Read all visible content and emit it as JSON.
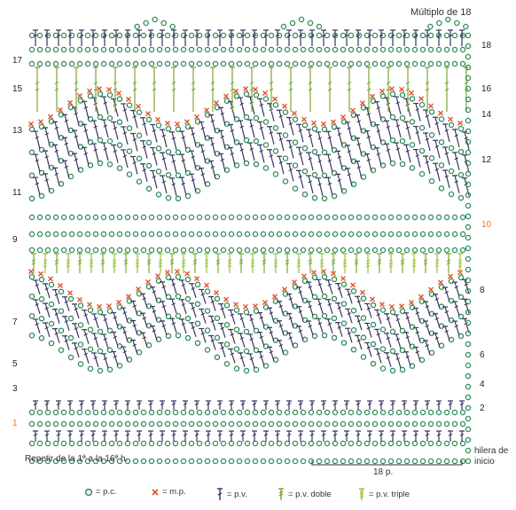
{
  "title": "Múltiplo de 18",
  "left_rows": [
    "17",
    "15",
    "13",
    "11",
    "9",
    "7",
    "5",
    "3",
    "1"
  ],
  "right_rows": [
    "18",
    "16",
    "14",
    "12",
    "10",
    "8",
    "6",
    "4",
    "2"
  ],
  "foundation_label": "hilera de inicio",
  "repeat_label": "18 p.",
  "note": "Repetir de la 1ª a la 16ª h.",
  "legend": [
    {
      "symbol": "circle-icon",
      "label": "= p.c."
    },
    {
      "symbol": "cross-icon",
      "label": "= m.p."
    },
    {
      "symbol": "stitch-dc-icon",
      "label": "= p.v."
    },
    {
      "symbol": "stitch-tr-icon",
      "label": "= p.v. doble"
    },
    {
      "symbol": "stitch-dtr-icon",
      "label": "= p.v. triple"
    }
  ],
  "colors": {
    "chain": "#2e8b57",
    "single": "#e0552a",
    "double": "#3a3560",
    "treble": "#7aa832",
    "triple": "#9ac23a",
    "highlight_row": "#e07a2a"
  }
}
